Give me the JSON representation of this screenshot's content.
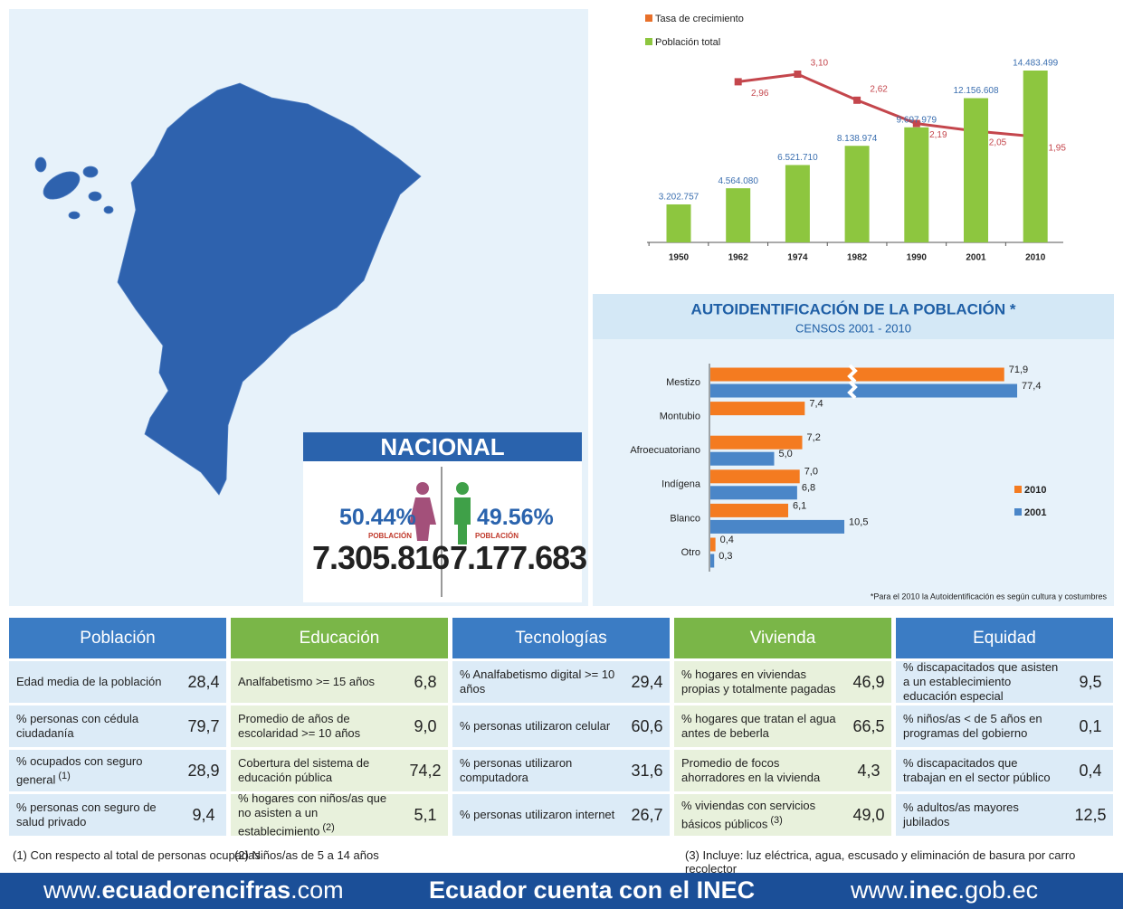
{
  "chart_data": [
    {
      "type": "combo",
      "categories": [
        "1950",
        "1962",
        "1974",
        "1982",
        "1990",
        "2001",
        "2010"
      ],
      "series": [
        {
          "name": "Tasa de crecimiento",
          "kind": "line",
          "color": "#c4464c",
          "legend_color": "#e8702a",
          "values": [
            null,
            2.96,
            3.1,
            2.62,
            2.19,
            2.05,
            1.95
          ],
          "value_labels": [
            null,
            "2,96",
            "3,10",
            "2,62",
            "2,19",
            "2,05",
            "1,95"
          ]
        },
        {
          "name": "Población total",
          "kind": "bar",
          "color": "#8dc63f",
          "values": [
            3202757,
            4564080,
            6521710,
            8138974,
            9697979,
            12156608,
            14483499
          ],
          "value_labels": [
            "3.202.757",
            "4.564.080",
            "6.521.710",
            "8.138.974",
            "9.697.979",
            "12.156.608",
            "14.483.499"
          ]
        }
      ]
    },
    {
      "type": "hbar",
      "title": "AUTOIDENTIFICACIÓN DE LA POBLACIÓN *",
      "subtitle": "CENSOS 2001 - 2010",
      "categories": [
        "Mestizo",
        "Montubio",
        "Afroecuatoriano",
        "Indígena",
        "Blanco",
        "Otro"
      ],
      "series": [
        {
          "name": "2010",
          "color": "#f47b20",
          "values": [
            71.9,
            7.4,
            7.2,
            7.0,
            6.1,
            0.4
          ],
          "value_labels": [
            "71,9",
            "7,4",
            "7,2",
            "7,0",
            "6,1",
            "0,4"
          ]
        },
        {
          "name": "2001",
          "color": "#4a86c8",
          "values": [
            77.4,
            null,
            5.0,
            6.8,
            10.5,
            0.3
          ],
          "value_labels": [
            "77,4",
            null,
            "5,0",
            "6,8",
            "10,5",
            "0,3"
          ]
        }
      ],
      "note": "*Para el 2010 la Autoidentificación es según cultura y costumbres"
    }
  ],
  "nacional": {
    "title": "NACIONAL",
    "women": {
      "percent": "50.44%",
      "label": "POBLACIÓN",
      "count": "7.305.816"
    },
    "men": {
      "percent": "49.56%",
      "label": "POBLACIÓN",
      "count": "7.177.683"
    }
  },
  "tables": [
    {
      "title": "Población",
      "rows": [
        {
          "label": "Edad media de la población",
          "value": "28,4"
        },
        {
          "label": "% personas con cédula ciudadanía",
          "value": "79,7"
        },
        {
          "label": "% ocupados con seguro general",
          "note": "(1)",
          "value": "28,9"
        },
        {
          "label": "% personas con seguro de salud privado",
          "value": "9,4"
        }
      ]
    },
    {
      "title": "Educación",
      "rows": [
        {
          "label": "Analfabetismo >= 15 años",
          "value": "6,8"
        },
        {
          "label": "Promedio de años de escolaridad >= 10 años",
          "value": "9,0"
        },
        {
          "label": "Cobertura del sistema de educación pública",
          "value": "74,2"
        },
        {
          "label": "% hogares con niños/as que no asisten a un establecimiento",
          "note": "(2)",
          "value": "5,1"
        }
      ]
    },
    {
      "title": "Tecnologías",
      "rows": [
        {
          "label": "% Analfabetismo digital >= 10 años",
          "value": "29,4"
        },
        {
          "label": "% personas utilizaron celular",
          "value": "60,6"
        },
        {
          "label": "% personas utilizaron computadora",
          "value": "31,6"
        },
        {
          "label": "% personas utilizaron internet",
          "value": "26,7"
        }
      ]
    },
    {
      "title": "Vivienda",
      "rows": [
        {
          "label": "% hogares en viviendas propias y totalmente pagadas",
          "value": "46,9"
        },
        {
          "label": "% hogares que tratan el agua antes de beberla",
          "value": "66,5"
        },
        {
          "label": "Promedio de focos ahorradores en la vivienda",
          "value": "4,3"
        },
        {
          "label": "% viviendas con servicios básicos públicos",
          "note": "(3)",
          "value": "49,0"
        }
      ]
    },
    {
      "title": "Equidad",
      "rows": [
        {
          "label": "% discapacitados que asisten a un establecimiento educación especial",
          "value": "9,5"
        },
        {
          "label": "% niños/as < de 5 años en programas del gobierno",
          "value": "0,1"
        },
        {
          "label": "% discapacitados que trabajan en el sector público",
          "value": "0,4"
        },
        {
          "label": "% adultos/as mayores jubilados",
          "value": "12,5"
        }
      ]
    }
  ],
  "footnotes": [
    "(1) Con respecto al total de personas ocupadas",
    "(2) Niños/as de 5 a 14 años",
    "(3) Incluye: luz eléctrica, agua, escusado y eliminación de basura por carro recolector"
  ],
  "footer": {
    "left": [
      "www.",
      "ecuadorencifras",
      ".com"
    ],
    "center": "Ecuador cuenta con el INEC",
    "right": [
      "www.",
      "inec",
      ".gob.ec"
    ]
  }
}
